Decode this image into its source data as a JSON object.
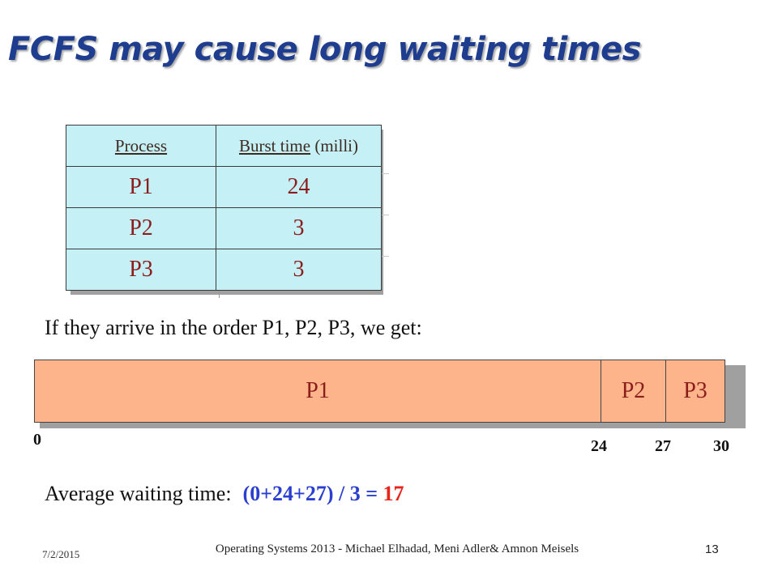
{
  "slide": {
    "title": "FCFS may cause long waiting times",
    "table": {
      "headers": {
        "process": "Process",
        "burst_underlined": "Burst time",
        "burst_suffix": " (milli)"
      },
      "rows": [
        {
          "process": "P1",
          "burst": "24"
        },
        {
          "process": "P2",
          "burst": "3"
        },
        {
          "process": "P3",
          "burst": "3"
        }
      ]
    },
    "arrival_text": "If they arrive in the order P1, P2, P3, we get:",
    "gantt": {
      "segments": [
        "P1",
        "P2",
        "P3"
      ],
      "ticks": [
        "0",
        "24",
        "27",
        "30"
      ]
    },
    "average": {
      "label": "Average waiting time:",
      "formula": "(0+24+27) / 3 = ",
      "result": "17"
    },
    "footer": {
      "date": "7/2/2015",
      "credit": "Operating Systems 2013 - Michael Elhadad, Meni Adler& Amnon Meisels",
      "page": "13"
    },
    "colors": {
      "title": "#1f3d8f",
      "table_fill": "#c5f0f5",
      "gantt_fill": "#fdb48a",
      "formula": "#2a3fd0",
      "result": "#e8231a"
    }
  }
}
